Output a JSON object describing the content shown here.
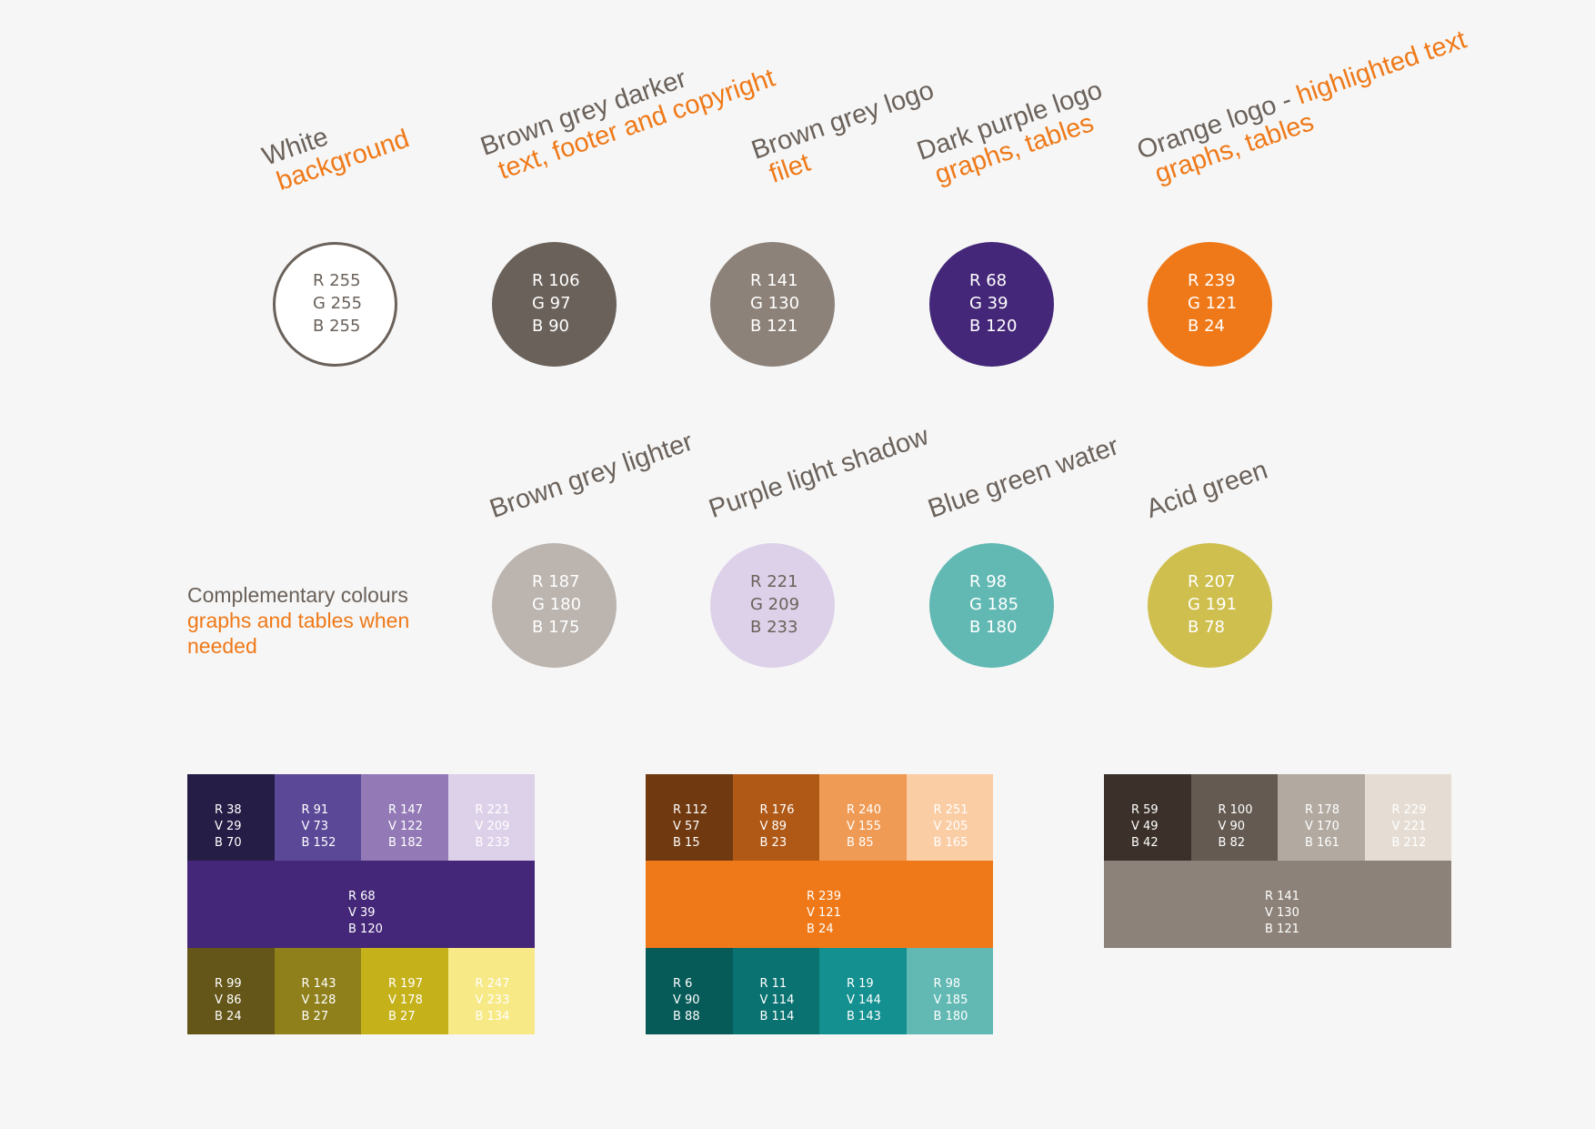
{
  "primary": [
    {
      "name": "White",
      "sub": "background",
      "sub_inline": false,
      "color": "#ffffff",
      "r": "R 255",
      "g": "G 255",
      "b": "B 255"
    },
    {
      "name": "Brown grey darker",
      "sub": "text, footer and copyright",
      "sub_inline": false,
      "color": "#6a615a",
      "r": "R 106",
      "g": "G 97",
      "b": "B 90"
    },
    {
      "name": "Brown grey logo",
      "sub": "filet",
      "sub_inline": false,
      "color": "#8d8279",
      "r": "R 141",
      "g": "G 130",
      "b": "B 121"
    },
    {
      "name": "Dark purple logo",
      "sub": "graphs, tables",
      "sub_inline": false,
      "color": "#442778",
      "r": "R 68",
      "g": "G 39",
      "b": "B 120"
    },
    {
      "name": "Orange logo - ",
      "name_highlight": "highlighted text",
      "sub": "graphs, tables",
      "color": "#ef7918",
      "r": "R 239",
      "g": "G 121",
      "b": "B 24"
    }
  ],
  "complementary_label": {
    "title": "Complementary colours",
    "sub_line1": "graphs and tables when",
    "sub_line2": "needed"
  },
  "complementary": [
    {
      "name": "Brown grey lighter",
      "color": "#bbb4af",
      "r": "R 187",
      "g": "G 180",
      "b": "B 175"
    },
    {
      "name": "Purple light shadow",
      "color": "#ddd1e9",
      "r": "R 221",
      "g": "G 209",
      "b": "B 233"
    },
    {
      "name": "Blue green water",
      "color": "#62b9b4",
      "r": "R 98",
      "g": "G 185",
      "b": "B 180"
    },
    {
      "name": "Acid green",
      "color": "#cfbf4e",
      "r": "R 207",
      "g": "G 191",
      "b": "B 78"
    }
  ],
  "palettes": [
    {
      "rows": [
        [
          {
            "color": "#261d46",
            "r": "R 38",
            "v": "V 29",
            "b": "B 70"
          },
          {
            "color": "#5b4998",
            "r": "R 91",
            "v": "V 73",
            "b": "B 152"
          },
          {
            "color": "#937ab6",
            "r": "R 147",
            "v": "V 122",
            "b": "B 182"
          },
          {
            "color": "#ddd1e9",
            "r": "R 221",
            "v": "V 209",
            "b": "B 233"
          }
        ],
        [
          {
            "color": "#442778",
            "r": "R 68",
            "v": "V 39",
            "b": "B 120"
          }
        ],
        [
          {
            "color": "#635618",
            "r": "R 99",
            "v": "V 86",
            "b": "B 24"
          },
          {
            "color": "#8f801b",
            "r": "R 143",
            "v": "V 128",
            "b": "B 27"
          },
          {
            "color": "#c5b21b",
            "r": "R 197",
            "v": "V 178",
            "b": "B 27"
          },
          {
            "color": "#f7e986",
            "r": "R 247",
            "v": "V 233",
            "b": "B 134"
          }
        ]
      ]
    },
    {
      "rows": [
        [
          {
            "color": "#70390f",
            "r": "R 112",
            "v": "V 57",
            "b": "B 15"
          },
          {
            "color": "#b05917",
            "r": "R 176",
            "v": "V 89",
            "b": "B 23"
          },
          {
            "color": "#f09b55",
            "r": "R 240",
            "v": "V 155",
            "b": "B 85"
          },
          {
            "color": "#fbcda5",
            "r": "R 251",
            "v": "V 205",
            "b": "B 165"
          }
        ],
        [
          {
            "color": "#ef7918",
            "r": "R 239",
            "v": "V 121",
            "b": "B 24"
          }
        ],
        [
          {
            "color": "#065a58",
            "r": "R 6",
            "v": "V 90",
            "b": "B 88"
          },
          {
            "color": "#0b7272",
            "r": "R 11",
            "v": "V 114",
            "b": "B 114"
          },
          {
            "color": "#13908f",
            "r": "R 19",
            "v": "V 144",
            "b": "B 143"
          },
          {
            "color": "#62b9b4",
            "r": "R 98",
            "v": "V 185",
            "b": "B 180"
          }
        ]
      ]
    },
    {
      "rows": [
        [
          {
            "color": "#3b312a",
            "r": "R 59",
            "v": "V 49",
            "b": "B 42"
          },
          {
            "color": "#645a52",
            "r": "R 100",
            "v": "V 90",
            "b": "B 82"
          },
          {
            "color": "#b2aaa1",
            "r": "R 178",
            "v": "V 170",
            "b": "B 161"
          },
          {
            "color": "#e5ddd4",
            "r": "R 229",
            "v": "V 221",
            "b": "B 212"
          }
        ],
        [
          {
            "color": "#8d8279",
            "r": "R 141",
            "v": "V 130",
            "b": "B 121"
          }
        ]
      ]
    }
  ]
}
